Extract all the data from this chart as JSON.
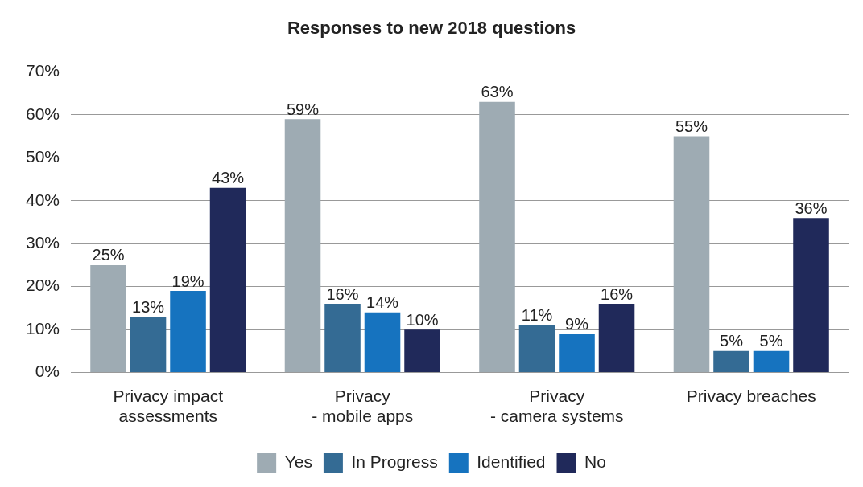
{
  "chart_data": {
    "type": "bar",
    "title": "Responses to new 2018 questions",
    "categories": [
      "Privacy impact\nassessments",
      "Privacy\n- mobile apps",
      "Privacy\n- camera systems",
      "Privacy breaches"
    ],
    "series": [
      {
        "name": "Yes",
        "color": "#9eabb3",
        "values": [
          25,
          59,
          63,
          55
        ],
        "value_labels": [
          "25%",
          "59%",
          "63%",
          "55%"
        ]
      },
      {
        "name": "In Progress",
        "color": "#346b94",
        "values": [
          13,
          16,
          11,
          5
        ],
        "value_labels": [
          "13%",
          "16%",
          "11%",
          "5%"
        ]
      },
      {
        "name": "Identified",
        "color": "#1673bf",
        "values": [
          19,
          14,
          9,
          5
        ],
        "value_labels": [
          "19%",
          "14%",
          "9%",
          "5%"
        ]
      },
      {
        "name": "No",
        "color": "#20295a",
        "values": [
          43,
          10,
          16,
          36
        ],
        "value_labels": [
          "43%",
          "10%",
          "16%",
          "36%"
        ]
      }
    ],
    "ylim": [
      0,
      70
    ],
    "yticks": [
      {
        "value": 0,
        "label": "0%"
      },
      {
        "value": 10,
        "label": "10%"
      },
      {
        "value": 20,
        "label": "20%"
      },
      {
        "value": 30,
        "label": "30%"
      },
      {
        "value": 40,
        "label": "40%"
      },
      {
        "value": 50,
        "label": "50%"
      },
      {
        "value": 60,
        "label": "60%"
      },
      {
        "value": 70,
        "label": "70%"
      }
    ],
    "grid": "y",
    "legend": "bottom"
  }
}
